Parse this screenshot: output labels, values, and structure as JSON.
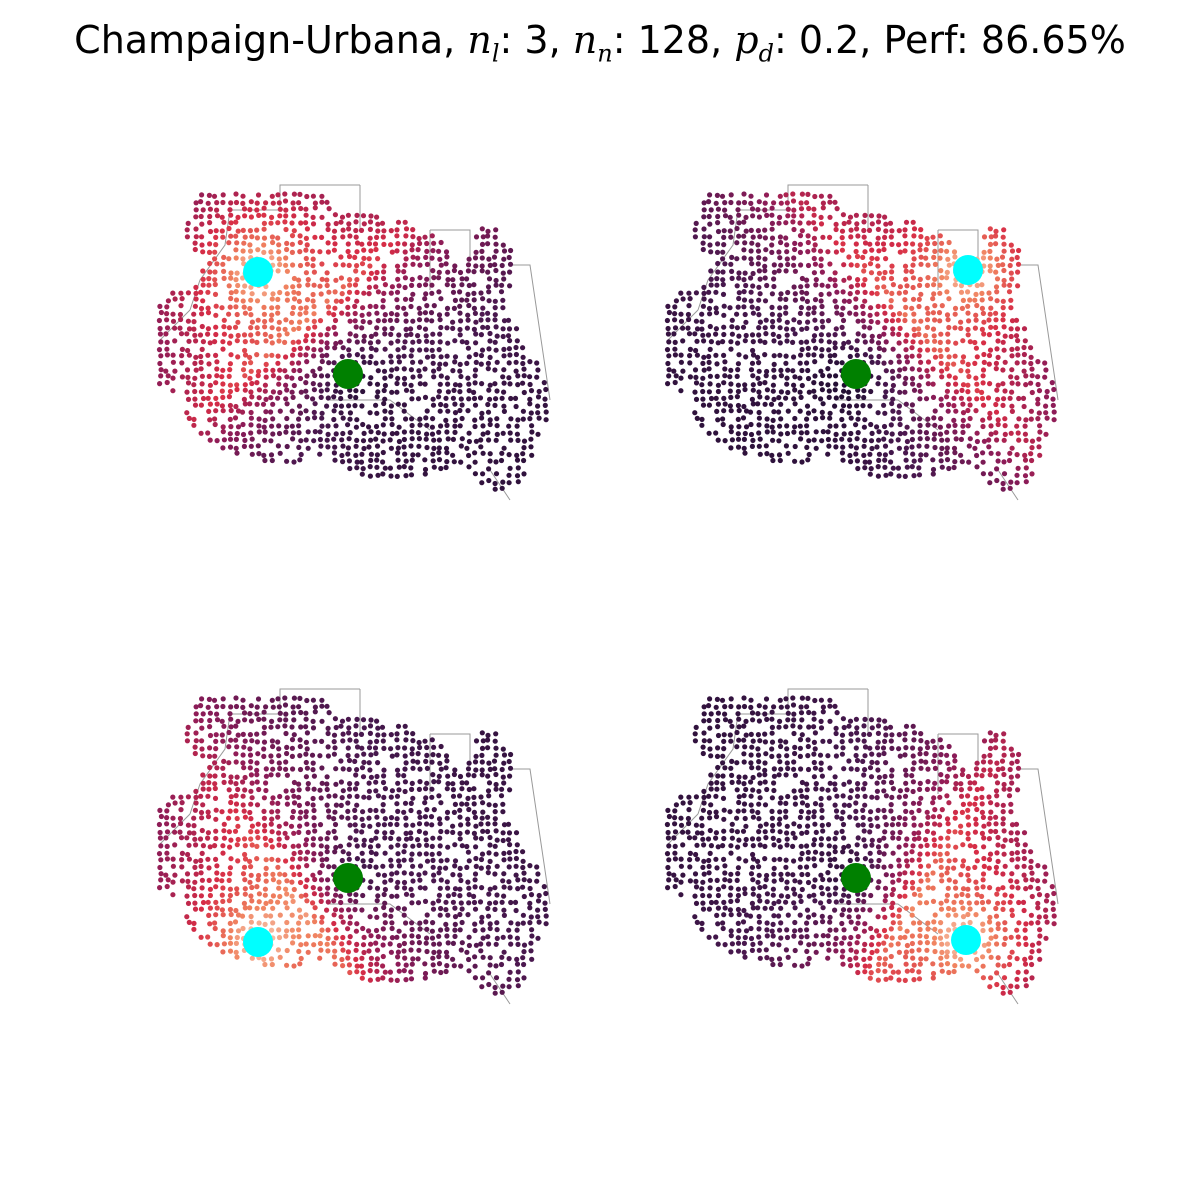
{
  "title": {
    "prefix": "Champaign-Urbana, ",
    "nl_symbol": "n",
    "nl_sub": "l",
    "nl_value": ": 3, ",
    "nn_symbol": "n",
    "nn_sub": "n",
    "nn_value": ": 128, ",
    "pd_symbol": "p",
    "pd_sub": "d",
    "pd_value": ": 0.2, ",
    "perf": "Perf: 86.65%"
  },
  "colors": {
    "center_marker": "#008000",
    "target_marker": "#00ffff",
    "edge": "#999999",
    "colormap": "rocket (dark purple → red → peach)"
  },
  "panels": [
    {
      "id": "top-left",
      "target_region": "northwest"
    },
    {
      "id": "top-right",
      "target_region": "northeast"
    },
    {
      "id": "bottom-left",
      "target_region": "southwest"
    },
    {
      "id": "bottom-right",
      "target_region": "southeast"
    }
  ]
}
